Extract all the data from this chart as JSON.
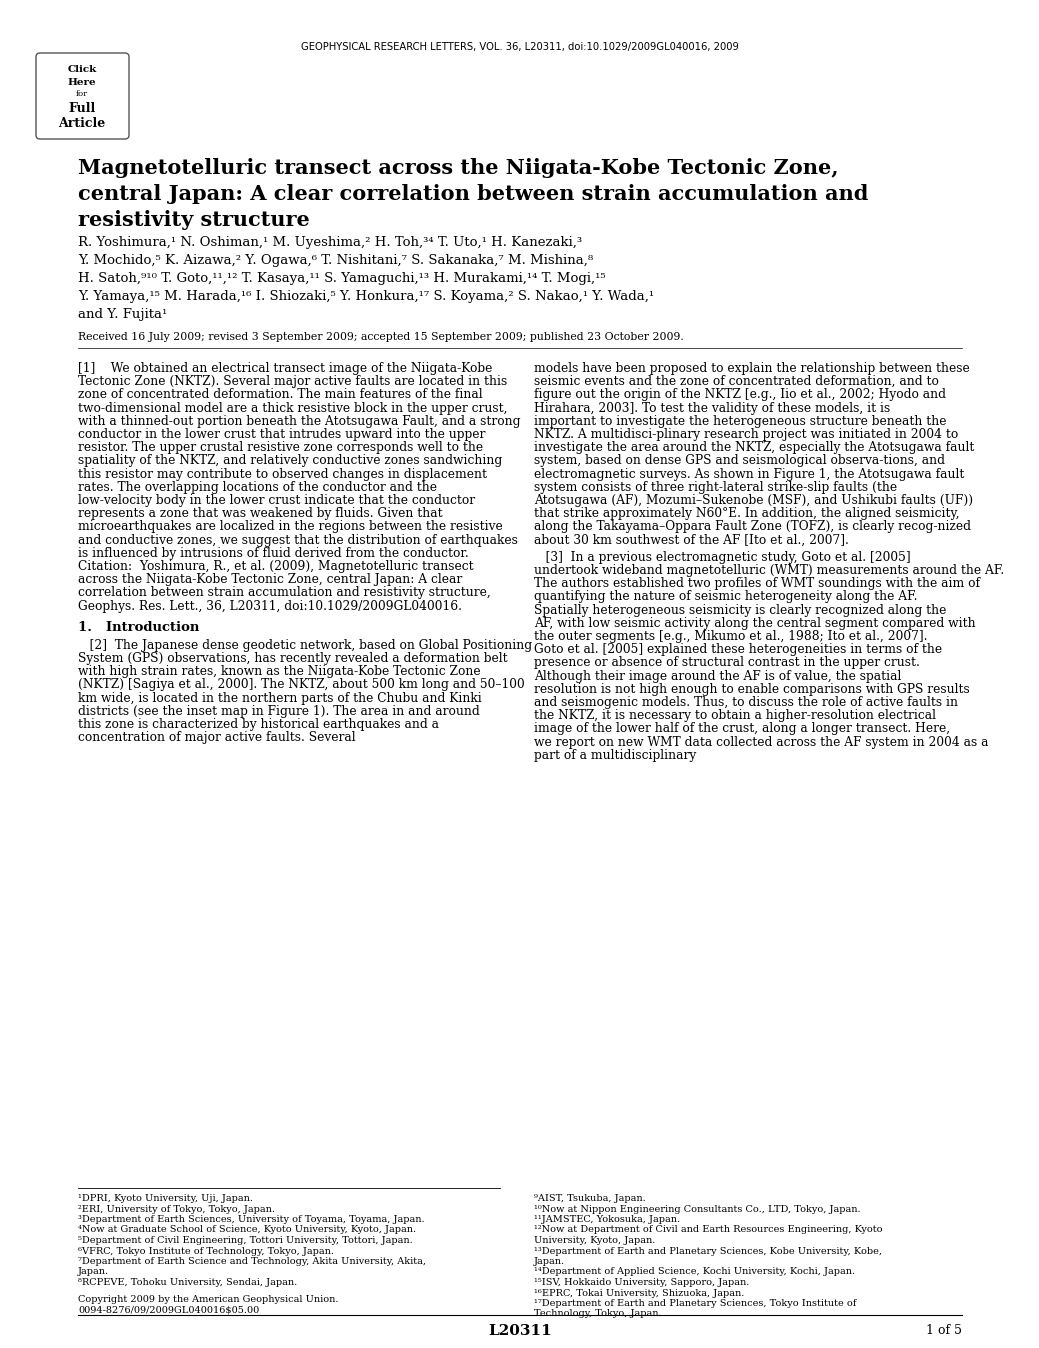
{
  "header": "GEOPHYSICAL RESEARCH LETTERS, VOL. 36, L20311, doi:10.1029/2009GL040016, 2009",
  "title_line1": "Magnetotelluric transect across the Niigata-Kobe Tectonic Zone,",
  "title_line2": "central Japan: A clear correlation between strain accumulation and",
  "title_line3": "resistivity structure",
  "background_color": "#ffffff",
  "page_label": "L20311",
  "page_num": "1 of 5"
}
